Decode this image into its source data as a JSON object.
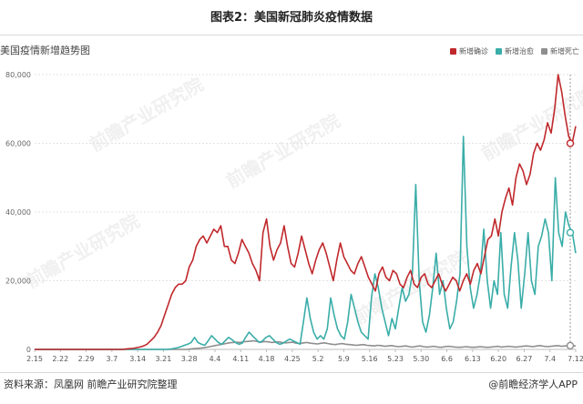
{
  "figure_title": "图表2：美国新冠肺炎疫情数据",
  "source_text": "资料来源：凤凰网 前瞻产业研究院整理",
  "credit_text": "@前瞻经济学人APP",
  "watermark_text": "前瞻产业研究院",
  "chart_data": {
    "type": "line",
    "title": "美国疫情新增趋势图",
    "xlabel": "",
    "ylabel": "",
    "x_start": "2.15",
    "x_end": "7.12",
    "x_tick_labels": [
      "2.15",
      "2.22",
      "2.29",
      "3.7",
      "3.14",
      "3.21",
      "3.28",
      "4.4",
      "4.11",
      "4.18",
      "4.25",
      "5.2",
      "5.9",
      "5.16",
      "5.23",
      "5.30",
      "6.6",
      "6.13",
      "6.20",
      "6.27",
      "7.4",
      "7.12"
    ],
    "y_tick_labels": [
      "0",
      "20,000",
      "40,000",
      "60,000",
      "80,000"
    ],
    "ylim": [
      0,
      80000
    ],
    "grid": true,
    "legend_position": "top-right",
    "series": [
      {
        "name": "新增确诊",
        "color": "#c0282c",
        "values": [
          0,
          0,
          0,
          0,
          0,
          0,
          0,
          0,
          0,
          0,
          0,
          0,
          0,
          0,
          0,
          0,
          0,
          0,
          0,
          0,
          0,
          0,
          0,
          0,
          0,
          0,
          100,
          200,
          300,
          500,
          700,
          1000,
          1500,
          2500,
          3500,
          5000,
          7000,
          10000,
          13000,
          16000,
          18000,
          19000,
          19000,
          20000,
          24000,
          26000,
          30000,
          32000,
          33000,
          31000,
          33000,
          35000,
          34000,
          36000,
          30000,
          30000,
          26000,
          25000,
          28000,
          32000,
          30000,
          28000,
          25000,
          23000,
          20000,
          34000,
          38000,
          30000,
          26000,
          29000,
          31000,
          36000,
          30000,
          25000,
          24000,
          28000,
          33000,
          29000,
          25000,
          22000,
          26000,
          29000,
          31000,
          28000,
          24000,
          20000,
          26000,
          31000,
          27000,
          25000,
          23000,
          22000,
          25000,
          27000,
          24000,
          21000,
          19000,
          17000,
          22000,
          24000,
          21000,
          20000,
          23000,
          22000,
          19000,
          18000,
          21000,
          23000,
          19000,
          18000,
          21000,
          22000,
          19000,
          18000,
          20000,
          22000,
          19000,
          17000,
          19000,
          21000,
          20000,
          17000,
          20000,
          22000,
          19000,
          23000,
          25000,
          22000,
          27000,
          32000,
          33000,
          38000,
          33000,
          40000,
          44000,
          47000,
          42000,
          50000,
          54000,
          52000,
          48000,
          51000,
          57000,
          60000,
          58000,
          61000,
          66000,
          63000,
          70000,
          80000,
          75000,
          68000,
          62000,
          60000,
          65000
        ]
      },
      {
        "name": "新增治愈",
        "color": "#3aada8",
        "values": [
          0,
          0,
          0,
          0,
          0,
          0,
          0,
          0,
          0,
          0,
          0,
          0,
          0,
          0,
          0,
          0,
          0,
          0,
          0,
          0,
          0,
          0,
          0,
          0,
          0,
          0,
          0,
          0,
          0,
          0,
          0,
          0,
          0,
          0,
          0,
          0,
          0,
          0,
          0,
          0,
          100,
          300,
          500,
          800,
          1200,
          1500,
          2000,
          3500,
          2000,
          1500,
          1200,
          2500,
          4000,
          3000,
          2000,
          1500,
          2500,
          3500,
          2800,
          2000,
          1500,
          1800,
          3500,
          5000,
          4000,
          3000,
          2000,
          2500,
          3500,
          4000,
          3000,
          2000,
          1500,
          1800,
          2500,
          3000,
          2500,
          2000,
          1500,
          8000,
          15000,
          9000,
          5000,
          3000,
          4000,
          3000,
          6000,
          15000,
          10000,
          6000,
          4000,
          3000,
          8000,
          16000,
          12000,
          8000,
          5000,
          4000,
          3000,
          15000,
          22000,
          18000,
          12000,
          8000,
          4000,
          9000,
          6000,
          12000,
          18000,
          14000,
          16000,
          22000,
          48000,
          20000,
          8000,
          5000,
          10000,
          18000,
          28000,
          16000,
          20000,
          12000,
          6000,
          8000,
          14000,
          22000,
          62000,
          30000,
          18000,
          12000,
          16000,
          22000,
          35000,
          20000,
          12000,
          20000,
          16000,
          34000,
          16000,
          12000,
          24000,
          34000,
          26000,
          12000,
          22000,
          34000,
          20000,
          16000,
          30000,
          33000,
          38000,
          34000,
          20000,
          50000,
          34000,
          30000,
          40000,
          36000,
          34000,
          28000
        ]
      },
      {
        "name": "新增死亡",
        "color": "#8e8e8e",
        "values": [
          0,
          0,
          0,
          0,
          0,
          0,
          0,
          0,
          0,
          0,
          0,
          0,
          0,
          0,
          0,
          0,
          0,
          0,
          0,
          0,
          0,
          0,
          0,
          0,
          0,
          0,
          0,
          0,
          0,
          0,
          0,
          0,
          0,
          0,
          0,
          0,
          0,
          0,
          0,
          0,
          0,
          0,
          0,
          0,
          100,
          200,
          300,
          400,
          500,
          700,
          900,
          1100,
          1300,
          1500,
          1700,
          1900,
          2000,
          2100,
          2000,
          2200,
          2300,
          2400,
          2500,
          2300,
          2100,
          2300,
          2200,
          2000,
          2100,
          2200,
          2000,
          1900,
          2000,
          2100,
          1800,
          1700,
          1900,
          2000,
          1800,
          1700,
          1600,
          1800,
          1900,
          1700,
          1500,
          1400,
          1600,
          1700,
          1500,
          1400,
          1300,
          1200,
          1300,
          1400,
          1200,
          1100,
          1000,
          1200,
          1100,
          900,
          1000,
          1100,
          900,
          800,
          900,
          1000,
          800,
          700,
          900,
          1000,
          800,
          700,
          800,
          900,
          700,
          600,
          800,
          900,
          800,
          700,
          600,
          700,
          800,
          700,
          600,
          700,
          800,
          700,
          600,
          700,
          800,
          900,
          700,
          800,
          900,
          800,
          700,
          800,
          900,
          1000,
          900,
          800,
          1000,
          1100,
          900,
          800,
          900,
          1000,
          1100,
          900,
          1000,
          1200,
          1100,
          1000
        ]
      }
    ]
  }
}
